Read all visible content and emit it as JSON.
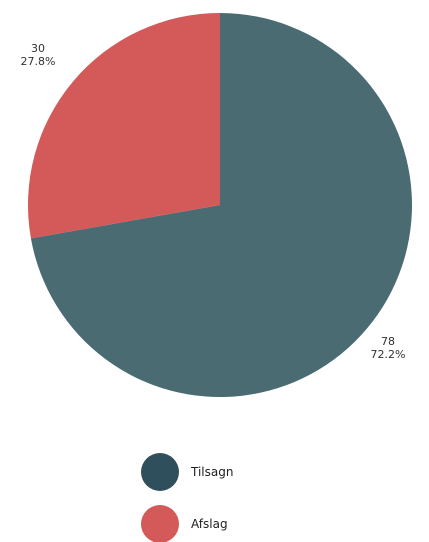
{
  "chart_data": {
    "type": "pie",
    "start_angle": "12 o'clock",
    "direction": "clockwise",
    "slices": [
      {
        "name": "Tilsagn",
        "value": 78,
        "percent": "72.2%",
        "color": "#4a6b72"
      },
      {
        "name": "Afslag",
        "value": 30,
        "percent": "27.8%",
        "color": "#d35a58"
      }
    ],
    "legend": {
      "placement": "bottom",
      "entries": [
        {
          "label": "Tilsagn",
          "color": "#2f4f5c"
        },
        {
          "label": "Afslag",
          "color": "#d35a58"
        }
      ]
    }
  }
}
